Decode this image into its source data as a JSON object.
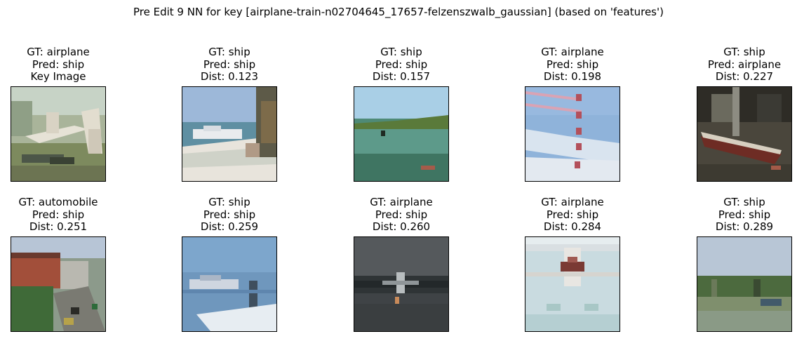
{
  "figure": {
    "title": "Pre Edit 9 NN for key [airplane-train-n02704645_17657-felzenszwalb_gaussian] (based on 'features')"
  },
  "panels": [
    {
      "gt": "GT: airplane",
      "pred": "Pred: ship",
      "extra": "Key Image",
      "scene": "key-airplane"
    },
    {
      "gt": "GT: ship",
      "pred": "Pred: ship",
      "extra": "Dist: 0.123",
      "scene": "beach-boat"
    },
    {
      "gt": "GT: ship",
      "pred": "Pred: ship",
      "extra": "Dist: 0.157",
      "scene": "lake-shore"
    },
    {
      "gt": "GT: airplane",
      "pred": "Pred: ship",
      "extra": "Dist: 0.198",
      "scene": "jets-sky"
    },
    {
      "gt": "GT: ship",
      "pred": "Pred: airplane",
      "extra": "Dist: 0.227",
      "scene": "hangar-boat"
    },
    {
      "gt": "GT: automobile",
      "pred": "Pred: ship",
      "extra": "Dist: 0.251",
      "scene": "town-street"
    },
    {
      "gt": "GT: ship",
      "pred": "Pred: ship",
      "extra": "Dist: 0.259",
      "scene": "water-boat"
    },
    {
      "gt": "GT: airplane",
      "pred": "Pred: ship",
      "extra": "Dist: 0.260",
      "scene": "dark-plane"
    },
    {
      "gt": "GT: airplane",
      "pred": "Pred: ship",
      "extra": "Dist: 0.284",
      "scene": "seaplane"
    },
    {
      "gt": "GT: ship",
      "pred": "Pred: ship",
      "extra": "Dist: 0.289",
      "scene": "harbor"
    }
  ]
}
